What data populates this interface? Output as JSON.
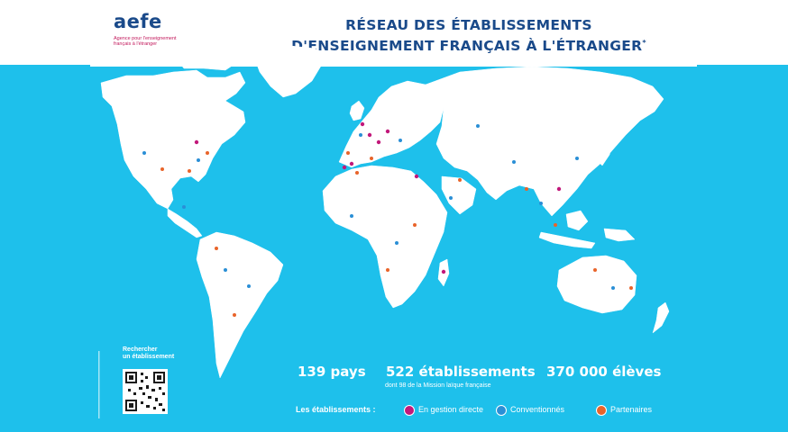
{
  "logo": {
    "word": "aefe",
    "tagline": "Agence pour l'enseignement français à l'étranger"
  },
  "title": {
    "line1": "RÉSEAU DES ÉTABLISSEMENTS",
    "line2": "D'ENSEIGNEMENT FRANÇAIS À L'ÉTRANGER",
    "mark": "*"
  },
  "qr": {
    "caption_line1": "Rechercher",
    "caption_line2": "un établissement"
  },
  "stats": {
    "countries": "139 pays",
    "schools": "522 établissements",
    "schools_note": "dont 98 de la Mission laïque française",
    "students": "370 000 élèves"
  },
  "legend": {
    "title": "Les établissements :",
    "items": [
      {
        "label": "En gestion directe",
        "color": "#c2187a"
      },
      {
        "label": "Conventionnés",
        "color": "#2a8fd6"
      },
      {
        "label": "Partenaires",
        "color": "#e8642a"
      }
    ]
  },
  "colors": {
    "ocean": "#1ec0eb",
    "land": "#ffffff",
    "brand_blue": "#1a4a8a",
    "brand_pink": "#c2185b"
  }
}
